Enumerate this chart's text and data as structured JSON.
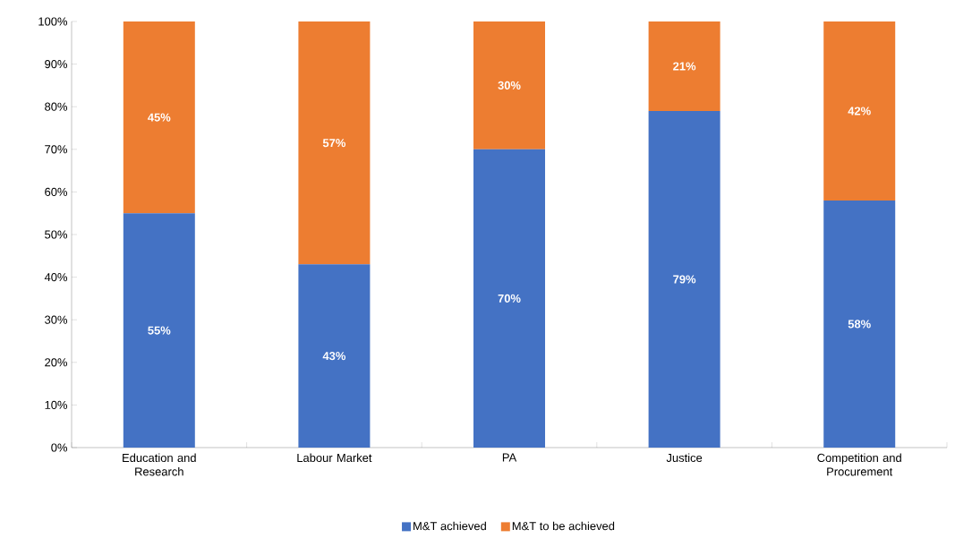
{
  "chart_data": {
    "type": "bar",
    "stacked": true,
    "categories": [
      "Education and Research",
      "Labour Market",
      "PA",
      "Justice",
      "Competition and Procurement"
    ],
    "series": [
      {
        "name": "M&T achieved",
        "color": "#4472c4",
        "values": [
          55,
          43,
          70,
          79,
          58
        ],
        "value_labels": [
          "55%",
          "43%",
          "70%",
          "79%",
          "58%"
        ]
      },
      {
        "name": "M&T to be achieved",
        "color": "#ed7d31",
        "values": [
          45,
          57,
          30,
          21,
          42
        ],
        "value_labels": [
          "45%",
          "57%",
          "30%",
          "21%",
          "42%"
        ]
      }
    ],
    "ylim": [
      0,
      100
    ],
    "yticks": [
      {
        "value": 0,
        "label": "0%"
      },
      {
        "value": 10,
        "label": "10%"
      },
      {
        "value": 20,
        "label": "20%"
      },
      {
        "value": 30,
        "label": "30%"
      },
      {
        "value": 40,
        "label": "40%"
      },
      {
        "value": 50,
        "label": "50%"
      },
      {
        "value": 60,
        "label": "60%"
      },
      {
        "value": 70,
        "label": "70%"
      },
      {
        "value": 80,
        "label": "80%"
      },
      {
        "value": 90,
        "label": "90%"
      },
      {
        "value": 100,
        "label": "100%"
      }
    ],
    "legend": "bottom"
  }
}
